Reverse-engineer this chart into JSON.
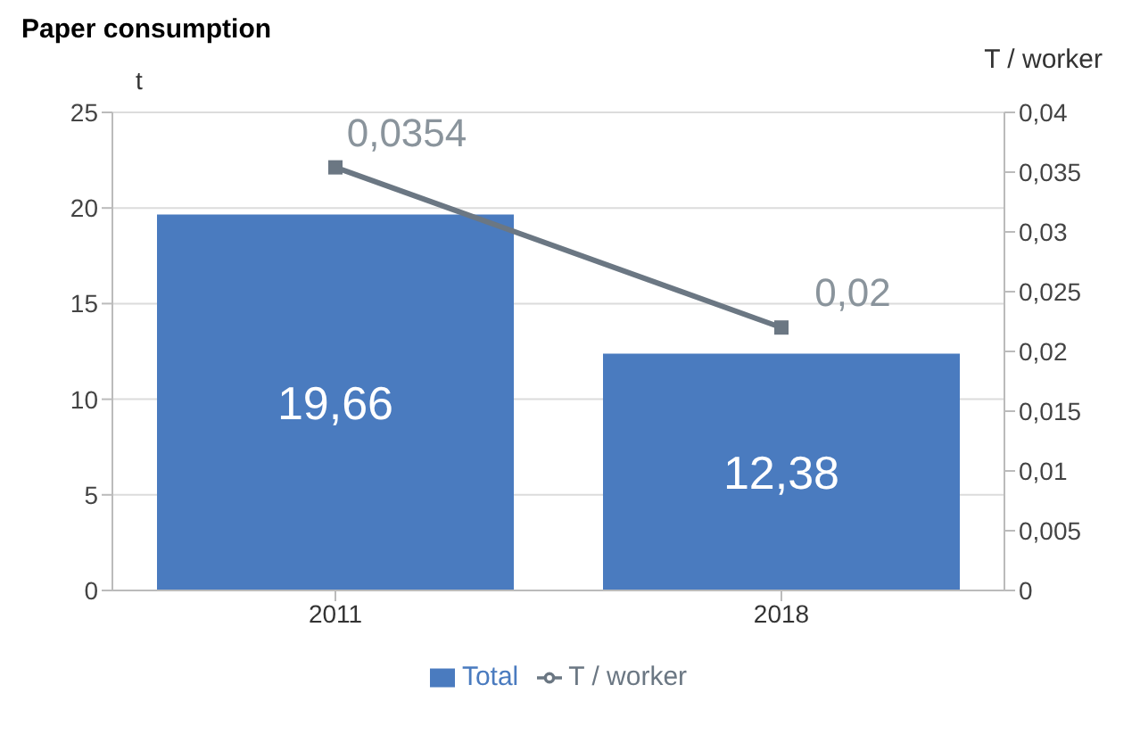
{
  "chart_data": {
    "type": "bar",
    "title": "Paper consumption",
    "ylabel": "t",
    "y2label": "T / worker",
    "categories": [
      "2011",
      "2018"
    ],
    "series": [
      {
        "name": "Total",
        "color": "#4a7bbf",
        "values": [
          19.66,
          12.38
        ],
        "value_labels": [
          "19,66",
          "12,38"
        ]
      },
      {
        "name": "T / worker",
        "type": "line",
        "axis": "y2",
        "color": "#6b7783",
        "marker": "square",
        "values": [
          0.0354,
          0.022
        ],
        "value_labels": [
          "0,0354",
          "0,02"
        ]
      }
    ],
    "ylim": [
      0,
      25
    ],
    "yticks": [
      0,
      5,
      10,
      15,
      20,
      25
    ],
    "y2lim": [
      0,
      0.04
    ],
    "y2ticks": [
      {
        "value": 0,
        "label": "0"
      },
      {
        "value": 0.005,
        "label": "0,005"
      },
      {
        "value": 0.01,
        "label": "0,01"
      },
      {
        "value": 0.015,
        "label": "0,015"
      },
      {
        "value": 0.02,
        "label": "0,02"
      },
      {
        "value": 0.025,
        "label": "0,025"
      },
      {
        "value": 0.03,
        "label": "0,03"
      },
      {
        "value": 0.035,
        "label": "0,035"
      },
      {
        "value": 0.04,
        "label": "0,04"
      }
    ],
    "grid": "y",
    "legend": "bottom"
  }
}
